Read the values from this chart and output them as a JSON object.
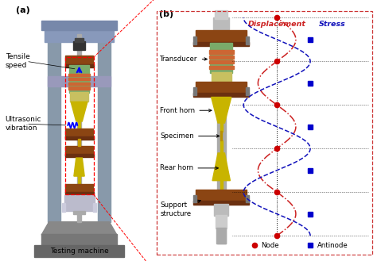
{
  "fig_width": 4.74,
  "fig_height": 3.29,
  "dpi": 100,
  "bg_color": "#ffffff",
  "label_a": "(a)",
  "label_b": "(b)",
  "text_tensile": "Tensile\nspeed",
  "text_ultrasonic": "Ultrasonic\nvibration",
  "text_testing": "Testing machine",
  "text_transducer": "Transducer",
  "text_front_horn": "Front horn",
  "text_specimen": "Specimen",
  "text_rear_horn": "Rear horn",
  "text_support": "Support\nstructure",
  "text_displacement": "Displacement",
  "text_stress": "Stress",
  "text_node": "Node",
  "text_antinode": "Antinode",
  "color_brown": "#8B4513",
  "color_yellow": "#C8B400",
  "color_green": "#7AAB7A",
  "color_red": "#CC0000",
  "color_blue": "#0000CC",
  "color_dashed_red": "#CC2222",
  "color_dashed_blue": "#1111BB",
  "color_frame": "#8899AA",
  "color_base": "#777777"
}
